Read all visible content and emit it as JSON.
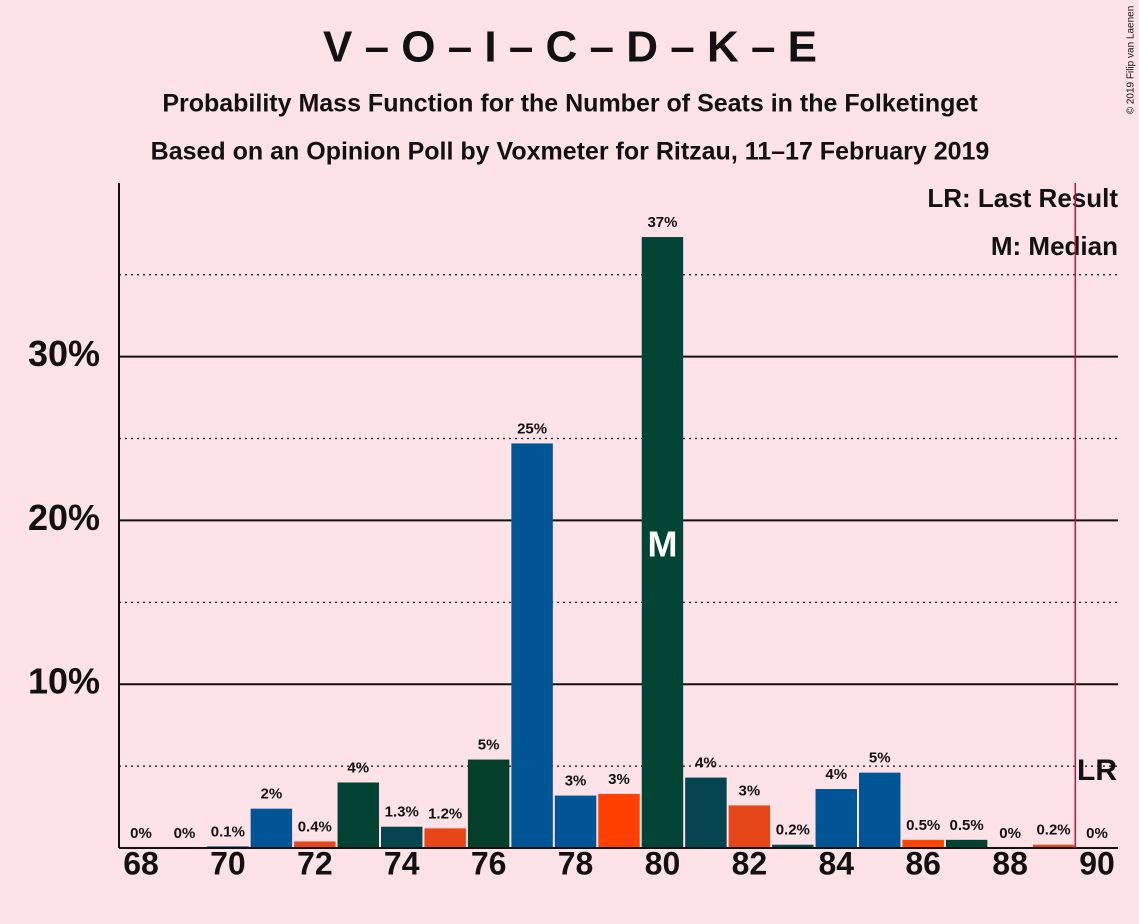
{
  "chart_data": {
    "type": "bar",
    "title": "V – O – I – C – D – K – E",
    "subtitle": "Probability Mass Function for the Number of Seats in the Folketinget",
    "subtitle2": "Based on an Opinion Poll by Voxmeter for Ritzau, 11–17 February 2019",
    "copyright": "© 2019 Filip van Laenen",
    "x": [
      68,
      69,
      70,
      71,
      72,
      73,
      74,
      75,
      76,
      77,
      78,
      79,
      80,
      81,
      82,
      83,
      84,
      85,
      86,
      87,
      88,
      89,
      90
    ],
    "values": [
      0,
      0,
      0.1,
      2.4,
      0.4,
      4.0,
      1.3,
      1.2,
      5.4,
      24.7,
      3.2,
      3.3,
      37.3,
      4.3,
      2.6,
      0.2,
      3.6,
      4.6,
      0.5,
      0.5,
      0,
      0.2,
      0
    ],
    "value_labels": [
      "0%",
      "0%",
      "0.1%",
      "2%",
      "0.4%",
      "4%",
      "1.3%",
      "1.2%",
      "5%",
      "25%",
      "3%",
      "3%",
      "37%",
      "4%",
      "3%",
      "0.2%",
      "4%",
      "5%",
      "0.5%",
      "0.5%",
      "0%",
      "0.2%",
      "0%"
    ],
    "colors": [
      "#005596",
      "#005596",
      "#005596",
      "#005596",
      "#e8461a",
      "#034232",
      "#054550",
      "#e8461a",
      "#033f2a",
      "#005596",
      "#005596",
      "#ff4000",
      "#034535",
      "#054550",
      "#e5461a",
      "#054550",
      "#005596",
      "#005596",
      "#ff4500",
      "#034232",
      "#005596",
      "#e8461a",
      "#005596"
    ],
    "xlim": [
      67.5,
      90.5
    ],
    "xticks": [
      68,
      70,
      72,
      74,
      76,
      78,
      80,
      82,
      84,
      86,
      88,
      90
    ],
    "ylim": [
      0,
      40.6
    ],
    "yticks": [
      {
        "value": 10,
        "label": "10%"
      },
      {
        "value": 20,
        "label": "20%"
      },
      {
        "value": 30,
        "label": "30%"
      }
    ],
    "minor_yticks": [
      5,
      15,
      25,
      35
    ],
    "median": 80,
    "median_label": "M",
    "last_result": 90,
    "last_result_label": "LR",
    "legend": [
      "LR: Last Result",
      "M: Median"
    ]
  }
}
